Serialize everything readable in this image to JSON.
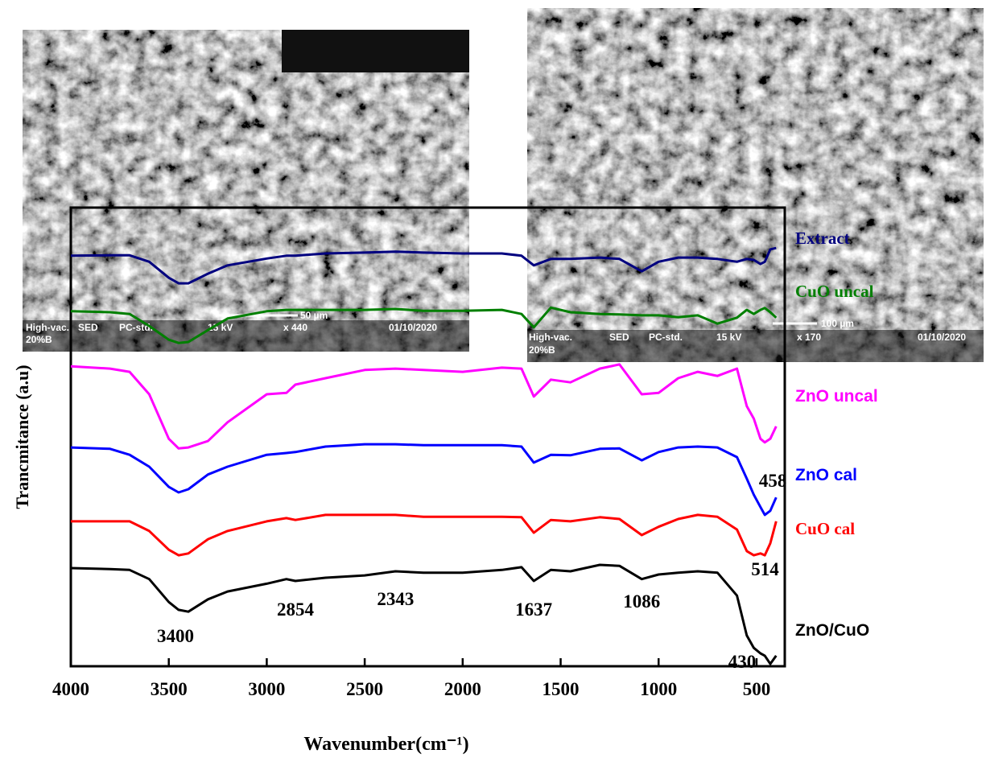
{
  "chart_data": {
    "type": "line",
    "xlabel": "Wavenumber(cm⁻¹)",
    "ylabel": "Trancmitance (a.u)",
    "x": [
      4000,
      3800,
      3700,
      3600,
      3500,
      3450,
      3400,
      3300,
      3200,
      3000,
      2900,
      2854,
      2700,
      2500,
      2343,
      2200,
      2000,
      1800,
      1700,
      1637,
      1550,
      1450,
      1300,
      1200,
      1086,
      1000,
      900,
      800,
      700,
      600,
      550,
      514,
      480,
      458,
      430,
      400
    ],
    "xlim": [
      4000,
      356
    ],
    "xticks": [
      4000,
      3500,
      3000,
      2500,
      2000,
      1500,
      1000,
      500
    ],
    "ylim": [
      0,
      100
    ],
    "series": [
      {
        "name": "Extract",
        "color": "#00007f",
        "values": [
          89.5,
          89.6,
          89.6,
          88.2,
          84.7,
          83.5,
          83.5,
          85.6,
          87.4,
          88.9,
          89.5,
          89.5,
          90,
          90.2,
          90.4,
          90.2,
          90,
          90,
          89.5,
          87.4,
          88.8,
          88.8,
          89.1,
          88.8,
          86.1,
          88.2,
          89.1,
          89.1,
          88.8,
          88.2,
          88.8,
          88.6,
          87.7,
          88.2,
          90.9,
          91.2
        ]
      },
      {
        "name": "CuO uncal",
        "color": "#007f00",
        "values": [
          77.4,
          77.2,
          76.8,
          74.2,
          71.2,
          70.5,
          70.7,
          73.3,
          75.8,
          77.4,
          77.7,
          77.7,
          77.7,
          77.7,
          77.9,
          77.5,
          77.5,
          77.7,
          76.8,
          73.9,
          78.2,
          77.2,
          76.8,
          76.7,
          76.5,
          76.5,
          76.1,
          76.5,
          74.7,
          76,
          77.7,
          76.8,
          77.7,
          78.1,
          77.2,
          76
        ]
      },
      {
        "name": "ZnO uncal",
        "color": "#ff00ff",
        "values": [
          65.4,
          64.9,
          64.2,
          59.3,
          49.6,
          47.5,
          47.7,
          49.1,
          53.2,
          59.3,
          59.6,
          61.4,
          62.8,
          64.6,
          64.9,
          64.6,
          64.2,
          65.1,
          64.9,
          58.8,
          62.5,
          61.9,
          64.9,
          65.8,
          59.3,
          59.6,
          62.8,
          64.2,
          63.3,
          64.9,
          56.7,
          54,
          49.6,
          48.8,
          49.6,
          52.3
        ]
      },
      {
        "name": "ZnO cal",
        "color": "#0000ff",
        "values": [
          47.7,
          47.4,
          46.1,
          43.5,
          39.1,
          37.9,
          38.6,
          41.8,
          43.5,
          46.1,
          46.5,
          46.7,
          47.9,
          48.4,
          48.4,
          48.2,
          48.2,
          48.2,
          47.9,
          44.4,
          46.1,
          46,
          47.4,
          47.5,
          44.9,
          46.7,
          47.7,
          47.9,
          47.7,
          45.6,
          40.9,
          37.4,
          34.7,
          33,
          33.9,
          36.8
        ]
      },
      {
        "name": "CuO cal",
        "color": "#ff0000",
        "values": [
          31.6,
          31.6,
          31.6,
          29.5,
          25.4,
          24.2,
          24.6,
          27.7,
          29.5,
          31.6,
          32.3,
          31.9,
          33,
          33,
          33,
          32.6,
          32.6,
          32.6,
          32.5,
          29.1,
          31.9,
          31.6,
          32.5,
          32.1,
          28.6,
          30.4,
          32.1,
          33,
          32.6,
          29.8,
          25.1,
          24.2,
          24.6,
          24.2,
          26.8,
          31.6
        ]
      },
      {
        "name": "ZnO/CuO",
        "color": "#000000",
        "values": [
          21.4,
          21.2,
          21,
          19,
          14,
          12.3,
          11.9,
          14.6,
          16.3,
          18,
          19,
          18.6,
          19.3,
          19.8,
          20.7,
          20.4,
          20.4,
          21,
          21.6,
          18.6,
          21,
          20.7,
          22.1,
          21.9,
          19,
          20,
          20.4,
          20.7,
          20.4,
          15.4,
          6.7,
          4,
          2.8,
          2.3,
          0.5,
          2.3
        ]
      }
    ],
    "annotations": [
      3400,
      2854,
      2343,
      1637,
      1086,
      458,
      514,
      430
    ],
    "sem_images": [
      {
        "info": [
          "High-vac.",
          "SED",
          "PC-std.",
          "15 kV",
          "x 440",
          "01/10/2020"
        ],
        "line2": "20%B",
        "scale": "50 µm"
      },
      {
        "info": [
          "High-vac.",
          "SED",
          "PC-std.",
          "15 kV",
          "x 170",
          "01/10/2020"
        ],
        "line2": "20%B",
        "scale": "100 µm"
      }
    ]
  }
}
